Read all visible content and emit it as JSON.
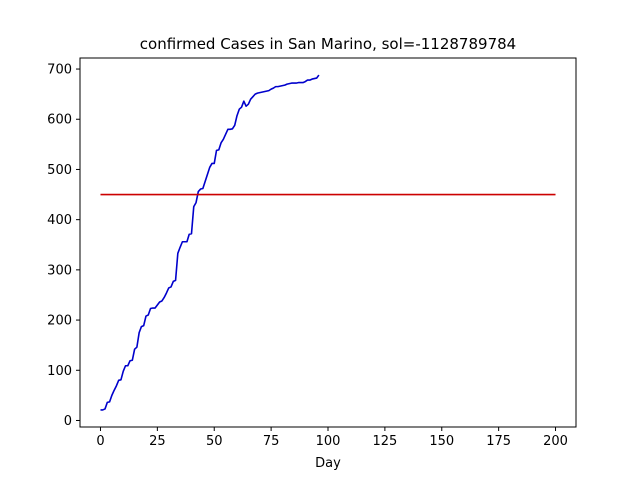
{
  "chart_data": {
    "type": "line",
    "title": "confirmed Cases in San Marino, sol=-1128789784",
    "xlabel": "Day",
    "ylabel": "",
    "xlim": [
      -9,
      209
    ],
    "ylim": [
      -13,
      722
    ],
    "xticks": [
      0,
      25,
      50,
      75,
      100,
      125,
      150,
      175,
      200
    ],
    "yticks": [
      0,
      100,
      200,
      300,
      400,
      500,
      600,
      700
    ],
    "grid": false,
    "series": [
      {
        "color": "#0000cc",
        "x": [
          0,
          1,
          2,
          3,
          4,
          5,
          6,
          7,
          8,
          9,
          10,
          11,
          12,
          13,
          14,
          15,
          16,
          17,
          18,
          19,
          20,
          21,
          22,
          23,
          24,
          25,
          26,
          27,
          28,
          29,
          30,
          31,
          32,
          33,
          34,
          35,
          36,
          37,
          38,
          39,
          40,
          41,
          42,
          43,
          44,
          45,
          46,
          47,
          48,
          49,
          50,
          51,
          52,
          53,
          54,
          55,
          56,
          57,
          58,
          59,
          60,
          61,
          62,
          63,
          64,
          65,
          66,
          67,
          68,
          69,
          70,
          71,
          72,
          73,
          74,
          75,
          76,
          77,
          78,
          79,
          80,
          81,
          82,
          83,
          84,
          85,
          86,
          87,
          88,
          89,
          90,
          91,
          92,
          93,
          94,
          95,
          96
        ],
        "y": [
          21,
          21,
          23,
          36,
          37,
          50,
          60,
          69,
          80,
          81,
          98,
          109,
          109,
          119,
          120,
          142,
          146,
          175,
          187,
          189,
          208,
          210,
          223,
          224,
          224,
          230,
          236,
          238,
          245,
          254,
          264,
          266,
          277,
          279,
          333,
          345,
          356,
          356,
          356,
          371,
          372,
          426,
          434,
          456,
          461,
          462,
          476,
          490,
          504,
          512,
          512,
          538,
          539,
          553,
          560,
          570,
          580,
          580,
          581,
          588,
          607,
          620,
          624,
          636,
          626,
          630,
          640,
          645,
          650,
          652,
          653,
          654,
          655,
          656,
          657,
          660,
          662,
          665,
          665,
          666,
          667,
          668,
          670,
          671,
          672,
          672,
          672,
          673,
          673,
          673,
          675,
          678,
          678,
          680,
          681,
          682,
          688
        ]
      },
      {
        "color": "#cc0000",
        "x": [
          0,
          200
        ],
        "y": [
          450,
          450
        ]
      }
    ]
  }
}
